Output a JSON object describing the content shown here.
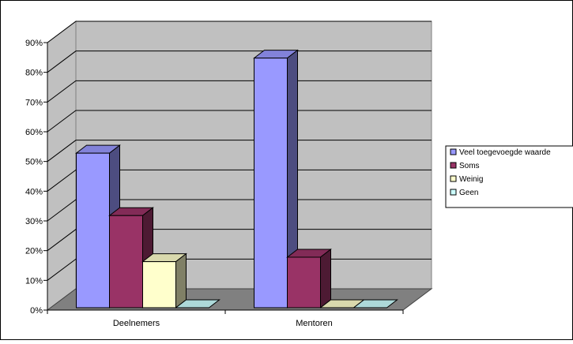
{
  "chart_data": {
    "type": "bar",
    "title": "",
    "xlabel": "",
    "ylabel": "",
    "categories": [
      "Deelnemers",
      "Mentoren"
    ],
    "series": [
      {
        "name": "Veel toegevoegde waarde",
        "values": [
          52,
          84
        ],
        "color": "#9999ff"
      },
      {
        "name": "Soms",
        "values": [
          31,
          17
        ],
        "color": "#993366"
      },
      {
        "name": "Weinig",
        "values": [
          15.5,
          0
        ],
        "color": "#ffffcc"
      },
      {
        "name": "Geen",
        "values": [
          0,
          0
        ],
        "color": "#ccffff"
      }
    ],
    "ylim": [
      0,
      90
    ],
    "yticks": [
      "0%",
      "10%",
      "20%",
      "30%",
      "40%",
      "50%",
      "60%",
      "70%",
      "80%",
      "90%"
    ],
    "grid": true,
    "three_d": true,
    "legend_position": "right",
    "wall_color": "#c0c0c0",
    "floor_color": "#808080"
  }
}
